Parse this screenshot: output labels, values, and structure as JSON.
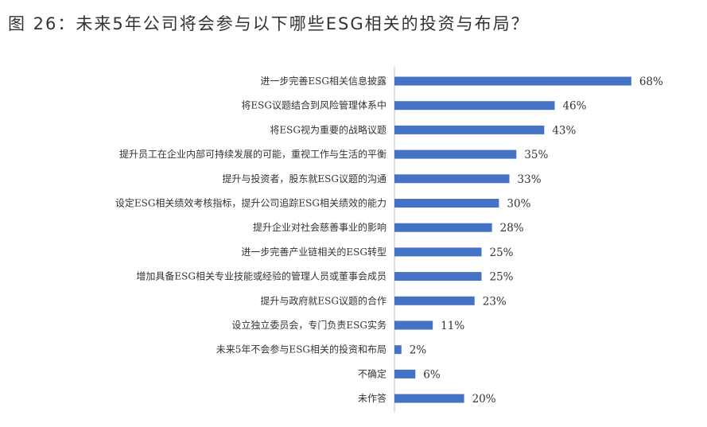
{
  "figure": {
    "title": "图 26：未来5年公司将会参与以下哪些ESG相关的投资与布局？"
  },
  "chart_data": {
    "type": "bar",
    "orientation": "horizontal",
    "categories": [
      "进一步完善ESG相关信息披露",
      "将ESG议题结合到风险管理体系中",
      "将ESG视为重要的战略议题",
      "提升员工在企业内部可持续发展的可能，重视工作与生活的平衡",
      "提升与投资者，股东就ESG议题的沟通",
      "设定ESG相关绩效考核指标，提升公司追踪ESG相关绩效的能力",
      "提升企业对社会慈善事业的影响",
      "进一步完善产业链相关的ESG转型",
      "增加具备ESG相关专业技能或经验的管理人员或董事会成员",
      "提升与政府就ESG议题的合作",
      "设立独立委员会，专门负责ESG实务",
      "未来5年不会参与ESG相关的投资和布局",
      "不确定",
      "未作答"
    ],
    "values": [
      68,
      46,
      43,
      35,
      33,
      30,
      28,
      25,
      25,
      23,
      11,
      2,
      6,
      20
    ],
    "value_labels": [
      "68%",
      "46%",
      "43%",
      "35%",
      "33%",
      "30%",
      "28%",
      "25%",
      "25%",
      "23%",
      "11%",
      "2%",
      "6%",
      "20%"
    ],
    "unit": "%",
    "xlim": [
      0,
      70
    ],
    "grid": false,
    "legend": "none",
    "bar_color": "#4472C4"
  }
}
